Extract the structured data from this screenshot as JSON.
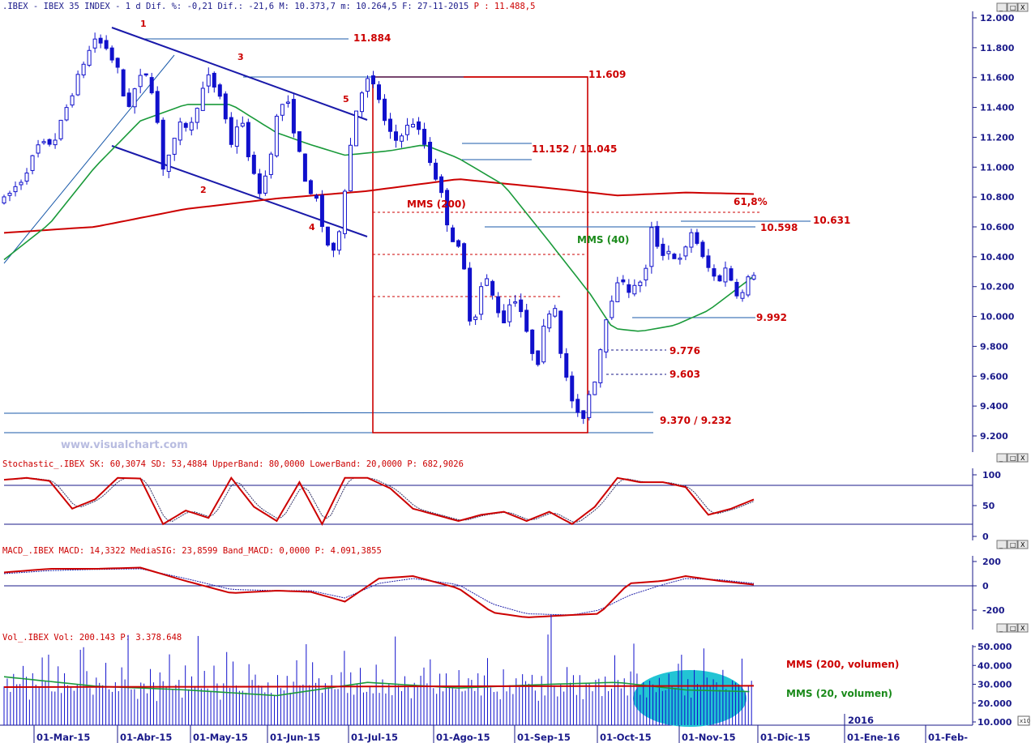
{
  "window_buttons": [
    "_",
    "□",
    "X"
  ],
  "header": {
    "main_info": ".IBEX - IBEX 35 INDEX -  1 d Dif. %: -0,21 Dif.: -21,6 M: 10.373,7 m: 10.264,5 F: 27-11-2015",
    "main_last": "P : 11.488,5",
    "stoch_info": "Stochastic_.IBEX SK: 60,3074 SD: 53,4884 UpperBand: 80,0000 LowerBand: 20,0000 P: 682,9026",
    "macd_info": "MACD_.IBEX MACD: 14,3322 MediaSIG: 23,8599 Band_MACD: 0,0000 P: 4.091,3855",
    "vol_info": "Vol_.IBEX Vol: 200.143 P: 3.378.648"
  },
  "watermark": "www.visualchart.com",
  "colors": {
    "price_blue": "#1010cc",
    "mms200_red": "#cc0000",
    "mms40_green": "#1a9a3a",
    "frame_navy": "#1a1a8a",
    "highlight_cyan": "#22c4d4"
  },
  "chart_data": [
    {
      "type": "candlestick",
      "title": ".IBEX - IBEX 35 INDEX - 1 d",
      "x_ticks": [
        "01-Mar-15",
        "01-Abr-15",
        "01-May-15",
        "01-Jun-15",
        "01-Jul-15",
        "01-Ago-15",
        "01-Sep-15",
        "01-Oct-15",
        "01-Nov-15",
        "01-Dic-15",
        "01-Ene-16",
        "01-Feb-"
      ],
      "year_marker": "2016",
      "y_ticks": [
        "12.000",
        "11.800",
        "11.600",
        "11.400",
        "11.200",
        "11.000",
        "10.800",
        "10.600",
        "10.400",
        "10.200",
        "10.000",
        "9.800",
        "9.600",
        "9.400",
        "9.200"
      ],
      "ylim": [
        9150,
        12020
      ],
      "price_path": [
        [
          0,
          10780
        ],
        [
          8,
          10920
        ],
        [
          15,
          11140
        ],
        [
          22,
          11170
        ],
        [
          28,
          11420
        ],
        [
          35,
          11700
        ],
        [
          40,
          11860
        ],
        [
          45,
          11800
        ],
        [
          50,
          11650
        ],
        [
          54,
          11380
        ],
        [
          58,
          11540
        ],
        [
          62,
          11650
        ],
        [
          66,
          11480
        ],
        [
          70,
          11000
        ],
        [
          74,
          11130
        ],
        [
          78,
          11300
        ],
        [
          82,
          11260
        ],
        [
          86,
          11470
        ],
        [
          90,
          11600
        ],
        [
          95,
          11480
        ],
        [
          100,
          11160
        ],
        [
          104,
          11350
        ],
        [
          108,
          11050
        ],
        [
          112,
          10820
        ],
        [
          116,
          10980
        ],
        [
          120,
          11330
        ],
        [
          124,
          11480
        ],
        [
          128,
          11220
        ],
        [
          132,
          10950
        ],
        [
          135,
          10800
        ],
        [
          138,
          10780
        ],
        [
          141,
          10520
        ],
        [
          145,
          10420
        ],
        [
          148,
          10620
        ],
        [
          152,
          11100
        ],
        [
          156,
          11480
        ],
        [
          160,
          11580
        ],
        [
          164,
          11520
        ],
        [
          168,
          11270
        ],
        [
          172,
          11170
        ],
        [
          176,
          11250
        ],
        [
          180,
          11300
        ],
        [
          184,
          11200
        ],
        [
          188,
          11020
        ],
        [
          192,
          10850
        ],
        [
          196,
          10560
        ],
        [
          200,
          10450
        ],
        [
          203,
          10280
        ],
        [
          206,
          9850
        ],
        [
          209,
          10180
        ],
        [
          213,
          10250
        ],
        [
          216,
          10080
        ],
        [
          220,
          9970
        ],
        [
          224,
          10150
        ],
        [
          228,
          10020
        ],
        [
          231,
          9810
        ],
        [
          235,
          9700
        ],
        [
          238,
          9960
        ],
        [
          242,
          10120
        ],
        [
          246,
          9660
        ],
        [
          250,
          9440
        ],
        [
          254,
          9270
        ],
        [
          257,
          9460
        ],
        [
          261,
          9620
        ],
        [
          264,
          9950
        ],
        [
          268,
          10150
        ],
        [
          272,
          10260
        ],
        [
          276,
          10150
        ],
        [
          279,
          10230
        ],
        [
          282,
          10260
        ],
        [
          285,
          10580
        ],
        [
          289,
          10420
        ],
        [
          293,
          10440
        ],
        [
          297,
          10360
        ],
        [
          300,
          10450
        ],
        [
          303,
          10590
        ],
        [
          307,
          10400
        ],
        [
          311,
          10300
        ],
        [
          314,
          10230
        ],
        [
          318,
          10330
        ],
        [
          321,
          10210
        ],
        [
          324,
          10110
        ],
        [
          327,
          10240
        ],
        [
          330,
          10290
        ]
      ],
      "series": [
        {
          "name": "MMS (200)",
          "values": [
            [
              0,
              10560
            ],
            [
              40,
              10600
            ],
            [
              80,
              10720
            ],
            [
              120,
              10790
            ],
            [
              160,
              10840
            ],
            [
              200,
              10920
            ],
            [
              240,
              10860
            ],
            [
              270,
              10810
            ],
            [
              300,
              10830
            ],
            [
              330,
              10820
            ]
          ]
        },
        {
          "name": "MMS (40)",
          "values": [
            [
              0,
              10380
            ],
            [
              20,
              10620
            ],
            [
              40,
              11000
            ],
            [
              60,
              11310
            ],
            [
              80,
              11420
            ],
            [
              100,
              11420
            ],
            [
              120,
              11230
            ],
            [
              135,
              11150
            ],
            [
              150,
              11080
            ],
            [
              170,
              11110
            ],
            [
              185,
              11150
            ],
            [
              200,
              11060
            ],
            [
              220,
              10880
            ],
            [
              240,
              10500
            ],
            [
              258,
              10150
            ],
            [
              268,
              9920
            ],
            [
              280,
              9900
            ],
            [
              295,
              9940
            ],
            [
              310,
              10040
            ],
            [
              330,
              10270
            ]
          ]
        }
      ],
      "annotations": {
        "levels": [
          "11.884",
          "11.609",
          "11.152 / 11.045",
          "61,8%",
          "10.631",
          "10.598",
          "9.992",
          "9.776",
          "9.603",
          "9.370 / 9.232"
        ],
        "wave_labels": [
          "1",
          "2",
          "3",
          "4",
          "5"
        ]
      }
    },
    {
      "type": "line",
      "title": "Stochastic_.IBEX",
      "y_ticks": [
        "100",
        "50",
        "0"
      ],
      "ylim": [
        0,
        100
      ],
      "upper_band": 80,
      "lower_band": 20,
      "series": [
        {
          "name": "SK",
          "values": [
            [
              0,
              92
            ],
            [
              10,
              95
            ],
            [
              20,
              90
            ],
            [
              30,
              45
            ],
            [
              40,
              60
            ],
            [
              50,
              95
            ],
            [
              60,
              94
            ],
            [
              70,
              20
            ],
            [
              80,
              42
            ],
            [
              90,
              30
            ],
            [
              100,
              95
            ],
            [
              110,
              48
            ],
            [
              120,
              25
            ],
            [
              130,
              88
            ],
            [
              140,
              20
            ],
            [
              150,
              95
            ],
            [
              160,
              95
            ],
            [
              170,
              78
            ],
            [
              180,
              45
            ],
            [
              190,
              35
            ],
            [
              200,
              25
            ],
            [
              210,
              35
            ],
            [
              220,
              40
            ],
            [
              230,
              25
            ],
            [
              240,
              40
            ],
            [
              250,
              20
            ],
            [
              260,
              48
            ],
            [
              270,
              95
            ],
            [
              280,
              88
            ],
            [
              290,
              88
            ],
            [
              300,
              80
            ],
            [
              310,
              35
            ],
            [
              320,
              45
            ],
            [
              330,
              60
            ]
          ]
        }
      ]
    },
    {
      "type": "line",
      "title": "MACD_.IBEX",
      "y_ticks": [
        "200",
        "0",
        "-200"
      ],
      "ylim": [
        -330,
        230
      ],
      "series": [
        {
          "name": "MACD",
          "values": [
            [
              0,
              110
            ],
            [
              20,
              140
            ],
            [
              40,
              140
            ],
            [
              60,
              150
            ],
            [
              80,
              40
            ],
            [
              100,
              -60
            ],
            [
              120,
              -40
            ],
            [
              135,
              -50
            ],
            [
              150,
              -130
            ],
            [
              165,
              60
            ],
            [
              180,
              80
            ],
            [
              200,
              -20
            ],
            [
              215,
              -220
            ],
            [
              230,
              -260
            ],
            [
              250,
              -240
            ],
            [
              262,
              -230
            ],
            [
              275,
              20
            ],
            [
              290,
              40
            ],
            [
              300,
              80
            ],
            [
              315,
              40
            ],
            [
              330,
              10
            ]
          ]
        },
        {
          "name": "MediaSIG",
          "values": [
            [
              0,
              100
            ],
            [
              20,
              125
            ],
            [
              40,
              135
            ],
            [
              60,
              140
            ],
            [
              80,
              60
            ],
            [
              100,
              -30
            ],
            [
              120,
              -40
            ],
            [
              135,
              -40
            ],
            [
              150,
              -100
            ],
            [
              165,
              20
            ],
            [
              180,
              60
            ],
            [
              200,
              10
            ],
            [
              215,
              -150
            ],
            [
              230,
              -230
            ],
            [
              250,
              -240
            ],
            [
              262,
              -200
            ],
            [
              275,
              -80
            ],
            [
              290,
              10
            ],
            [
              300,
              60
            ],
            [
              315,
              50
            ],
            [
              330,
              20
            ]
          ]
        }
      ]
    },
    {
      "type": "bar",
      "title": "Vol_.IBEX",
      "y_ticks": [
        "50.000",
        "40.000",
        "30.000",
        "20.000",
        "10.000"
      ],
      "ylim": [
        7000,
        52000
      ],
      "volume_pattern": [
        28000,
        31000,
        26000,
        34000,
        29000,
        27000,
        36000,
        30000,
        25000,
        33000,
        28000,
        31000,
        42000,
        29000,
        27000,
        30000,
        26000,
        38000,
        29000,
        32000
      ],
      "series": [
        {
          "name": "MMS (200, volumen)",
          "values": [
            [
              0,
              28500
            ],
            [
              330,
              29200
            ]
          ]
        },
        {
          "name": "MMS (20, volumen)",
          "values": [
            [
              0,
              34000
            ],
            [
              40,
              29000
            ],
            [
              80,
              27000
            ],
            [
              120,
              24000
            ],
            [
              160,
              31000
            ],
            [
              200,
              28000
            ],
            [
              240,
              30000
            ],
            [
              270,
              31000
            ],
            [
              300,
              27000
            ],
            [
              330,
              26000
            ]
          ]
        }
      ]
    }
  ]
}
